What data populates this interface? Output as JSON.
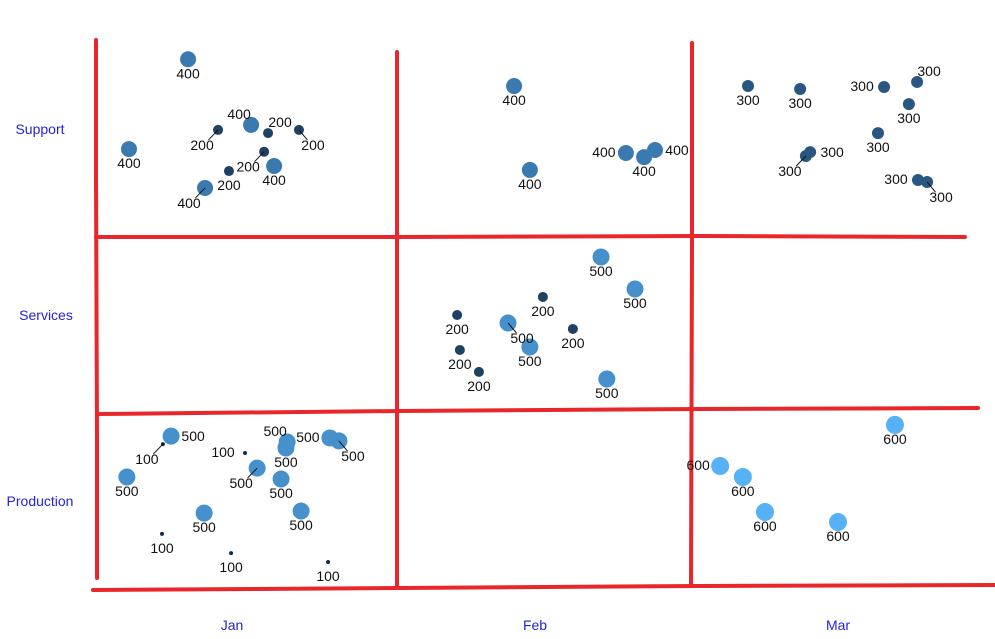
{
  "chart_data": {
    "type": "scatter",
    "title": "",
    "xlabel": "",
    "ylabel": "",
    "x_categories": [
      "Jan",
      "Feb",
      "Mar"
    ],
    "y_categories": [
      "Production",
      "Services",
      "Support"
    ],
    "grid": "on (hand-drawn red lines between categories)",
    "legend": "none",
    "colors": {
      "grid": "#e8262b",
      "ticks": "#2323d8",
      "v100": "#132b43",
      "v200": "#1e4262",
      "v300": "#2a5782",
      "v400": "#3a7ab1",
      "v500": "#4690cc",
      "v600": "#56b1f7"
    },
    "note": "x and y are jittered positions in category units (Jan=1, Feb=2, Mar=3; Production=1, Services=2, Support=3)",
    "points": [
      {
        "x": 0.855,
        "y": 3.375,
        "value": 400,
        "label": "400",
        "pos": "below"
      },
      {
        "x": 0.66,
        "y": 2.892,
        "value": 400,
        "label": "400",
        "pos": "below"
      },
      {
        "x": 1.063,
        "y": 3.022,
        "value": 400,
        "label": "400",
        "pos": "above-left"
      },
      {
        "x": 0.954,
        "y": 2.995,
        "value": 200,
        "label": "200",
        "pos": "below-left"
      },
      {
        "x": 1.119,
        "y": 2.978,
        "value": 200,
        "label": "200",
        "pos": "above-right"
      },
      {
        "x": 1.221,
        "y": 2.995,
        "value": 200,
        "label": "200",
        "pos": "below-right"
      },
      {
        "x": 1.106,
        "y": 2.878,
        "value": 200,
        "label": "200",
        "pos": "below-left"
      },
      {
        "x": 0.99,
        "y": 2.774,
        "value": 200,
        "label": "200",
        "pos": "below"
      },
      {
        "x": 1.139,
        "y": 2.801,
        "value": 400,
        "label": "400",
        "pos": "below"
      },
      {
        "x": 0.911,
        "y": 2.683,
        "value": 400,
        "label": "400",
        "pos": "below-left"
      },
      {
        "x": 1.931,
        "y": 3.231,
        "value": 400,
        "label": "400",
        "pos": "below"
      },
      {
        "x": 1.983,
        "y": 2.78,
        "value": 400,
        "label": "400",
        "pos": "below"
      },
      {
        "x": 2.3,
        "y": 2.871,
        "value": 400,
        "label": "400",
        "pos": "left"
      },
      {
        "x": 2.36,
        "y": 2.849,
        "value": 400,
        "label": "400",
        "pos": "below"
      },
      {
        "x": 2.396,
        "y": 2.887,
        "value": 400,
        "label": "400",
        "pos": "right"
      },
      {
        "x": 2.703,
        "y": 3.231,
        "value": 300,
        "label": "300",
        "pos": "below"
      },
      {
        "x": 2.875,
        "y": 3.215,
        "value": 300,
        "label": "300",
        "pos": "below"
      },
      {
        "x": 3.152,
        "y": 3.226,
        "value": 300,
        "label": "300",
        "pos": "left"
      },
      {
        "x": 3.261,
        "y": 3.253,
        "value": 300,
        "label": "300",
        "pos": "above-right"
      },
      {
        "x": 3.234,
        "y": 3.134,
        "value": 300,
        "label": "300",
        "pos": "below"
      },
      {
        "x": 3.132,
        "y": 2.978,
        "value": 300,
        "label": "300",
        "pos": "below"
      },
      {
        "x": 2.908,
        "y": 2.876,
        "value": 300,
        "label": "300",
        "pos": "right"
      },
      {
        "x": 2.894,
        "y": 2.855,
        "value": 300,
        "label": "300",
        "pos": "below-left"
      },
      {
        "x": 3.264,
        "y": 2.726,
        "value": 300,
        "label": "300",
        "pos": "left"
      },
      {
        "x": 3.294,
        "y": 2.715,
        "value": 300,
        "label": "300",
        "pos": "below-right"
      },
      {
        "x": 2.218,
        "y": 2.312,
        "value": 500,
        "label": "500",
        "pos": "below"
      },
      {
        "x": 2.33,
        "y": 2.14,
        "value": 500,
        "label": "500",
        "pos": "below"
      },
      {
        "x": 2.026,
        "y": 2.097,
        "value": 200,
        "label": "200",
        "pos": "below"
      },
      {
        "x": 1.743,
        "y": 2.0,
        "value": 200,
        "label": "200",
        "pos": "below"
      },
      {
        "x": 1.911,
        "y": 1.957,
        "value": 500,
        "label": "500",
        "pos": "below-right"
      },
      {
        "x": 2.125,
        "y": 1.925,
        "value": 200,
        "label": "200",
        "pos": "below"
      },
      {
        "x": 1.752,
        "y": 1.812,
        "value": 200,
        "label": "200",
        "pos": "below"
      },
      {
        "x": 1.983,
        "y": 1.828,
        "value": 500,
        "label": "500",
        "pos": "below"
      },
      {
        "x": 1.815,
        "y": 1.694,
        "value": 200,
        "label": "200",
        "pos": "below"
      },
      {
        "x": 2.237,
        "y": 1.656,
        "value": 500,
        "label": "500",
        "pos": "below"
      },
      {
        "x": 0.799,
        "y": 1.349,
        "value": 500,
        "label": "500",
        "pos": "right"
      },
      {
        "x": 0.772,
        "y": 1.306,
        "value": 100,
        "label": "100",
        "pos": "below-left"
      },
      {
        "x": 0.653,
        "y": 1.129,
        "value": 500,
        "label": "500",
        "pos": "below"
      },
      {
        "x": 1.043,
        "y": 1.258,
        "value": 100,
        "label": "100",
        "pos": "left"
      },
      {
        "x": 1.182,
        "y": 1.317,
        "value": 500,
        "label": "500",
        "pos": "above-left"
      },
      {
        "x": 1.178,
        "y": 1.285,
        "value": 500,
        "label": "500",
        "pos": "below"
      },
      {
        "x": 1.323,
        "y": 1.339,
        "value": 500,
        "label": "500",
        "pos": "left"
      },
      {
        "x": 1.353,
        "y": 1.323,
        "value": 500,
        "label": "500",
        "pos": "below-right"
      },
      {
        "x": 1.083,
        "y": 1.177,
        "value": 500,
        "label": "500",
        "pos": "below-left"
      },
      {
        "x": 1.162,
        "y": 1.118,
        "value": 500,
        "label": "500",
        "pos": "below"
      },
      {
        "x": 0.908,
        "y": 0.935,
        "value": 500,
        "label": "500",
        "pos": "below"
      },
      {
        "x": 1.228,
        "y": 0.946,
        "value": 500,
        "label": "500",
        "pos": "below"
      },
      {
        "x": 0.769,
        "y": 0.823,
        "value": 100,
        "label": "100",
        "pos": "below"
      },
      {
        "x": 0.997,
        "y": 0.72,
        "value": 100,
        "label": "100",
        "pos": "below"
      },
      {
        "x": 1.317,
        "y": 0.672,
        "value": 100,
        "label": "100",
        "pos": "below"
      },
      {
        "x": 3.188,
        "y": 1.409,
        "value": 600,
        "label": "600",
        "pos": "below"
      },
      {
        "x": 2.611,
        "y": 1.188,
        "value": 600,
        "label": "600",
        "pos": "left"
      },
      {
        "x": 2.686,
        "y": 1.129,
        "value": 600,
        "label": "600",
        "pos": "below"
      },
      {
        "x": 2.759,
        "y": 0.941,
        "value": 600,
        "label": "600",
        "pos": "below"
      },
      {
        "x": 3.0,
        "y": 0.887,
        "value": 600,
        "label": "600",
        "pos": "below"
      }
    ]
  }
}
